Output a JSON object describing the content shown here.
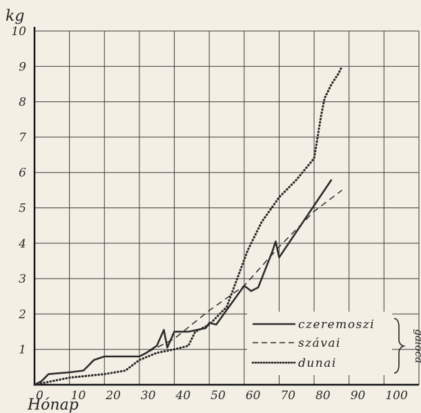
{
  "chart_data": {
    "type": "line",
    "ylabel": "kg",
    "xlabel": "Hónap",
    "xlim": [
      0,
      110
    ],
    "ylim": [
      0,
      10
    ],
    "xticks": [
      0,
      10,
      20,
      30,
      40,
      50,
      60,
      70,
      80,
      90,
      100
    ],
    "yticks": [
      1,
      2,
      3,
      4,
      5,
      6,
      7,
      8,
      9,
      10
    ],
    "grid": true,
    "legend_position": "bottom-right",
    "legend_group_label": "galóca",
    "series": [
      {
        "name": "czeremoszi",
        "style": "solid",
        "points": [
          [
            0,
            0
          ],
          [
            2,
            0.1
          ],
          [
            4,
            0.3
          ],
          [
            10,
            0.35
          ],
          [
            14,
            0.4
          ],
          [
            17,
            0.7
          ],
          [
            20,
            0.8
          ],
          [
            30,
            0.8
          ],
          [
            32,
            0.9
          ],
          [
            35,
            1.1
          ],
          [
            37,
            1.55
          ],
          [
            38,
            1.05
          ],
          [
            40,
            1.5
          ],
          [
            44,
            1.5
          ],
          [
            49,
            1.6
          ],
          [
            50,
            1.75
          ],
          [
            52,
            1.7
          ],
          [
            60,
            2.8
          ],
          [
            62,
            2.65
          ],
          [
            64,
            2.75
          ],
          [
            68,
            3.75
          ],
          [
            69,
            4.05
          ],
          [
            70,
            3.6
          ],
          [
            85,
            5.8
          ]
        ]
      },
      {
        "name": "szávai",
        "style": "dashed",
        "points": [
          [
            30,
            0.8
          ],
          [
            40,
            1.3
          ],
          [
            50,
            2.1
          ],
          [
            60,
            2.8
          ],
          [
            70,
            3.9
          ],
          [
            80,
            4.9
          ],
          [
            88,
            5.5
          ]
        ]
      },
      {
        "name": "dunai",
        "style": "dotted",
        "points": [
          [
            0,
            0
          ],
          [
            10,
            0.2
          ],
          [
            20,
            0.3
          ],
          [
            26,
            0.4
          ],
          [
            30,
            0.7
          ],
          [
            35,
            0.9
          ],
          [
            40,
            1.0
          ],
          [
            44,
            1.1
          ],
          [
            46,
            1.5
          ],
          [
            50,
            1.7
          ],
          [
            55,
            2.2
          ],
          [
            58,
            3.0
          ],
          [
            61,
            3.8
          ],
          [
            65,
            4.6
          ],
          [
            70,
            5.3
          ],
          [
            75,
            5.8
          ],
          [
            80,
            6.4
          ],
          [
            81,
            7.0
          ],
          [
            82,
            7.6
          ],
          [
            83,
            8.1
          ],
          [
            85,
            8.5
          ],
          [
            87,
            8.8
          ],
          [
            88,
            9.0
          ]
        ]
      }
    ]
  }
}
